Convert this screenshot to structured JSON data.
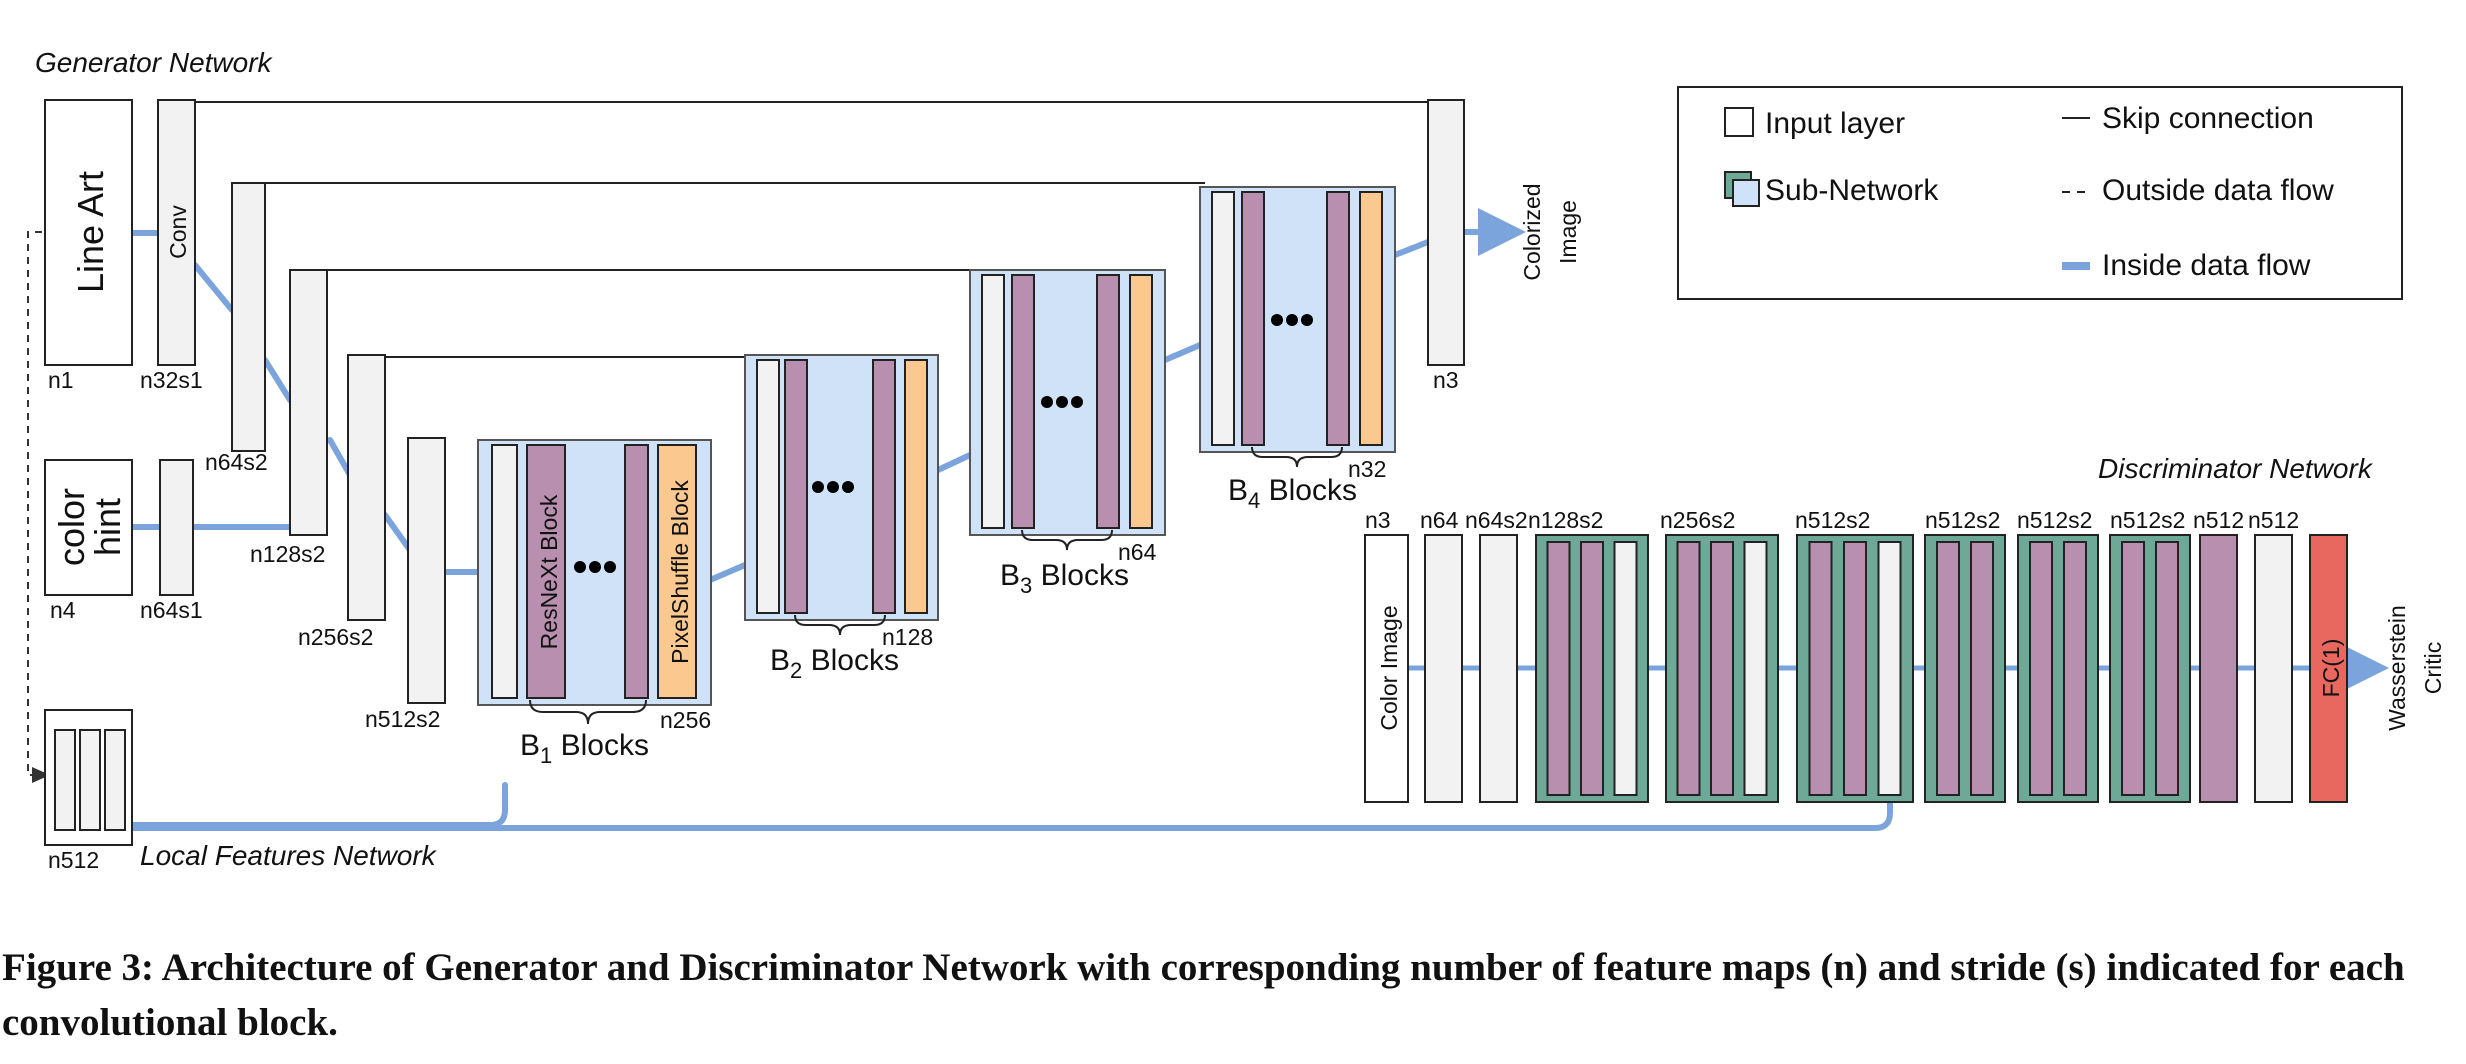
{
  "generator": {
    "title": "Generator Network",
    "line_art": "Line Art",
    "conv": "Conv",
    "color_hint": "color\nhint",
    "output": "Colorized\nImage",
    "labels": {
      "n1": "n1",
      "n32s1": "n32s1",
      "n64s2": "n64s2",
      "n128s2": "n128s2",
      "n256s2": "n256s2",
      "n512s2": "n512s2",
      "n4": "n4",
      "n64s1": "n64s1",
      "n512": "n512",
      "n3": "n3"
    },
    "blocks": [
      {
        "main": "B",
        "sub": "1",
        "rest": " Blocks",
        "n": "n256"
      },
      {
        "main": "B",
        "sub": "2",
        "rest": " Blocks",
        "n": "n128"
      },
      {
        "main": "B",
        "sub": "3",
        "rest": " Blocks",
        "n": "n64"
      },
      {
        "main": "B",
        "sub": "4",
        "rest": " Blocks",
        "n": "n32"
      }
    ],
    "resnext_label": "ResNeXt Block",
    "pixelshuffle_label": "PixelShuffle Block",
    "local_features": "Local Features Network"
  },
  "legend": {
    "input_layer": "Input layer",
    "sub_network": "Sub-Network",
    "skip": "Skip connection",
    "outside": "Outside data flow",
    "inside": "Inside data flow"
  },
  "discriminator": {
    "title": "Discriminator Network",
    "input": "Color Image",
    "fc": "FC(1)",
    "output": "Wasserstein\nCritic",
    "labels": [
      "n3",
      "n64",
      "n64s2",
      "n128s2",
      "n256s2",
      "n512s2",
      "n512s2",
      "n512s2",
      "n512s2",
      "n512",
      "n512"
    ]
  },
  "caption": "Figure 3: Architecture of Generator and Discriminator Network with corresponding number of feature maps (n) and stride (s) indicated for each convolutional block.",
  "colors": {
    "flow": "#7ba3dc",
    "layer_fill": "#f2f2f2",
    "block_bg": "#cfe2f8",
    "resnext": "#b88faf",
    "pixelshuffle": "#fbc990",
    "subnet": "#6ea896",
    "fc": "#e8675e"
  }
}
